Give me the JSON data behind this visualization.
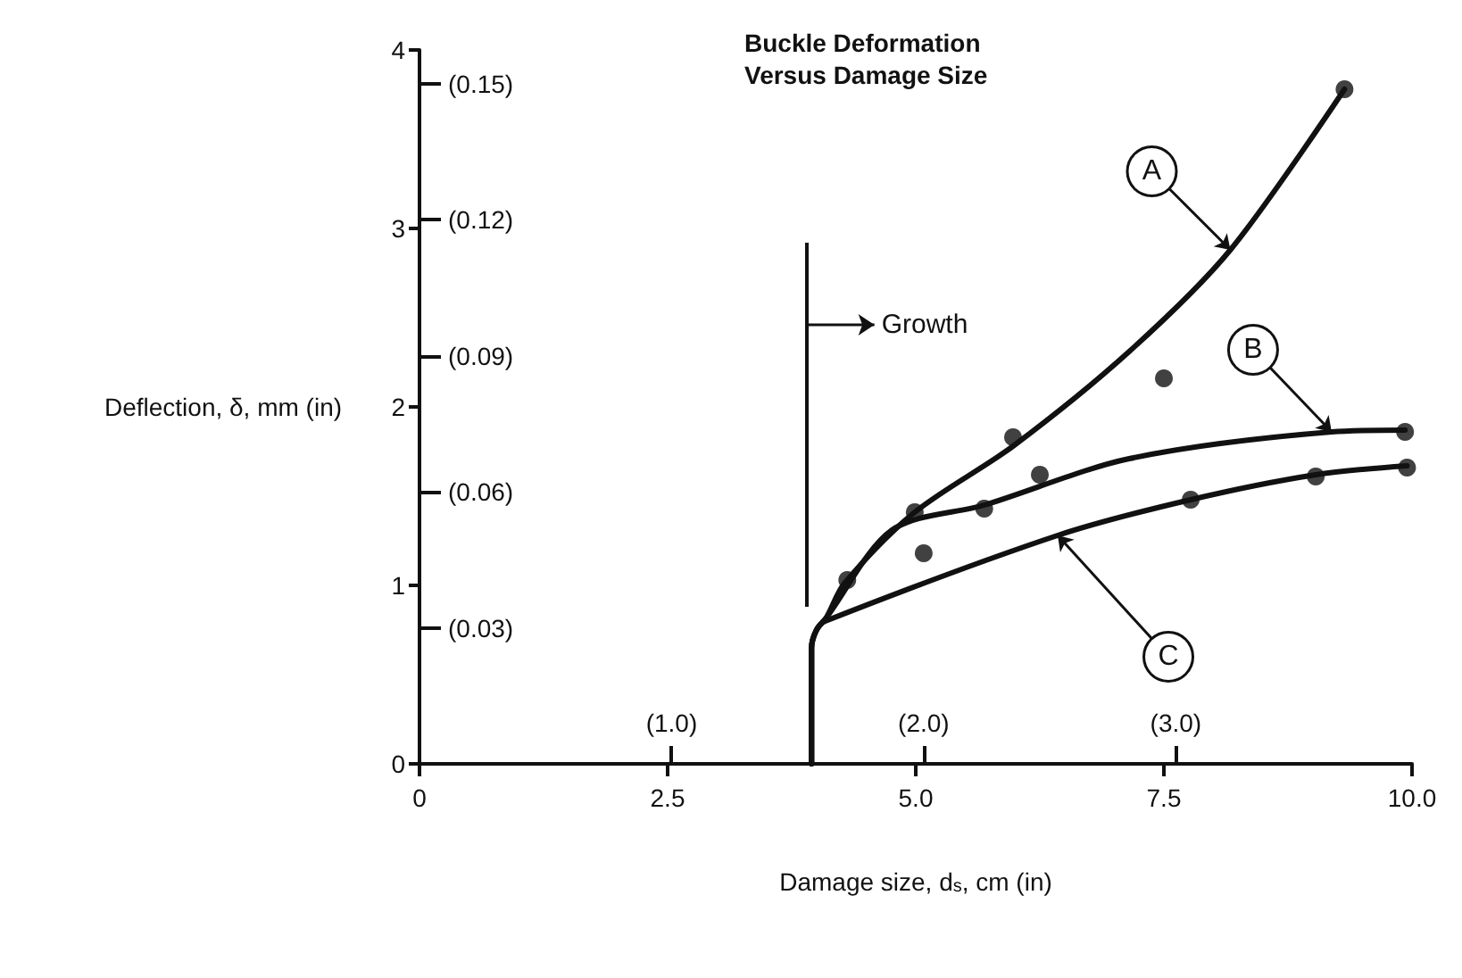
{
  "chart_data": {
    "type": "line",
    "title": "Buckle Deformation Versus Damage Size",
    "xlabel": "Damage size, d$_{s}$, cm (in)",
    "ylabel": "Deflection, δ, mm (in)",
    "xlim": [
      0,
      10
    ],
    "xticks": [
      0,
      2.5,
      {
        "value": 5,
        "label": "5.0"
      },
      7.5,
      {
        "value": 10,
        "label": "10.0"
      }
    ],
    "ylim": [
      0,
      4
    ],
    "yticks": [
      0,
      1,
      2,
      3,
      4
    ],
    "x2lim": [
      0,
      3.937
    ],
    "x2ticks": [
      {
        "value": 1,
        "label": "(1.0)"
      },
      {
        "value": 2,
        "label": "(2.0)"
      },
      {
        "value": 3,
        "label": "(3.0)"
      }
    ],
    "y2lim": [
      0,
      0.1575
    ],
    "y2ticks": [
      {
        "value": 0.03,
        "label": "(0.03)"
      },
      {
        "value": 0.06,
        "label": "(0.06)"
      },
      {
        "value": 0.09,
        "label": "(0.09)"
      },
      {
        "value": 0.12,
        "label": "(0.12)"
      },
      {
        "value": 0.15,
        "label": "(0.15)"
      }
    ],
    "series": [
      {
        "marker": "none",
        "color": "#111111",
        "x": [
          3.95,
          3.95,
          4.0,
          4.1,
          4.28,
          4.99,
          5.98,
          7.15,
          8.17,
          9.32
        ],
        "values": [
          0,
          0.65,
          0.75,
          0.82,
          1.01,
          1.41,
          1.78,
          2.31,
          2.88,
          3.78
        ]
      },
      {
        "marker": "none",
        "color": "#111111",
        "x": [
          3.95,
          3.95,
          4.0,
          4.1,
          4.76,
          5.69,
          7.15,
          9.19,
          9.93
        ],
        "values": [
          0,
          0.65,
          0.75,
          0.82,
          1.31,
          1.45,
          1.71,
          1.86,
          1.87
        ]
      },
      {
        "marker": "none",
        "color": "#111111",
        "x": [
          3.95,
          3.95,
          4.0,
          4.09,
          6.43,
          7.77,
          9.03,
          9.95
        ],
        "values": [
          0,
          0.65,
          0.75,
          0.8,
          1.28,
          1.48,
          1.62,
          1.67
        ]
      },
      {
        "type": "scatter",
        "marker": "circle",
        "color": "#111111",
        "x": [
          4.31,
          4.99,
          5.98,
          9.32
        ],
        "values": [
          1.03,
          1.41,
          1.83,
          3.78
        ]
      },
      {
        "type": "scatter",
        "marker": "circle",
        "color": "#111111",
        "x": [
          5.08,
          5.69,
          6.25,
          9.93
        ],
        "values": [
          1.18,
          1.43,
          1.62,
          1.86
        ]
      },
      {
        "type": "scatter",
        "marker": "circle",
        "color": "#111111",
        "x": [
          7.5
        ],
        "values": [
          2.16
        ]
      },
      {
        "type": "scatter",
        "marker": "circle",
        "color": "#111111",
        "x": [
          7.77,
          9.03,
          9.95
        ],
        "values": [
          1.48,
          1.61,
          1.66
        ]
      }
    ],
    "ref_lines": [
      {
        "axis": "x",
        "value": 3.9,
        "label": "Growth"
      }
    ],
    "annotations": [
      {
        "text": "A",
        "x": 8.17,
        "y": 2.88
      },
      {
        "text": "B",
        "x": 9.19,
        "y": 1.86
      },
      {
        "text": "C",
        "x": 6.43,
        "y": 1.28
      }
    ]
  }
}
